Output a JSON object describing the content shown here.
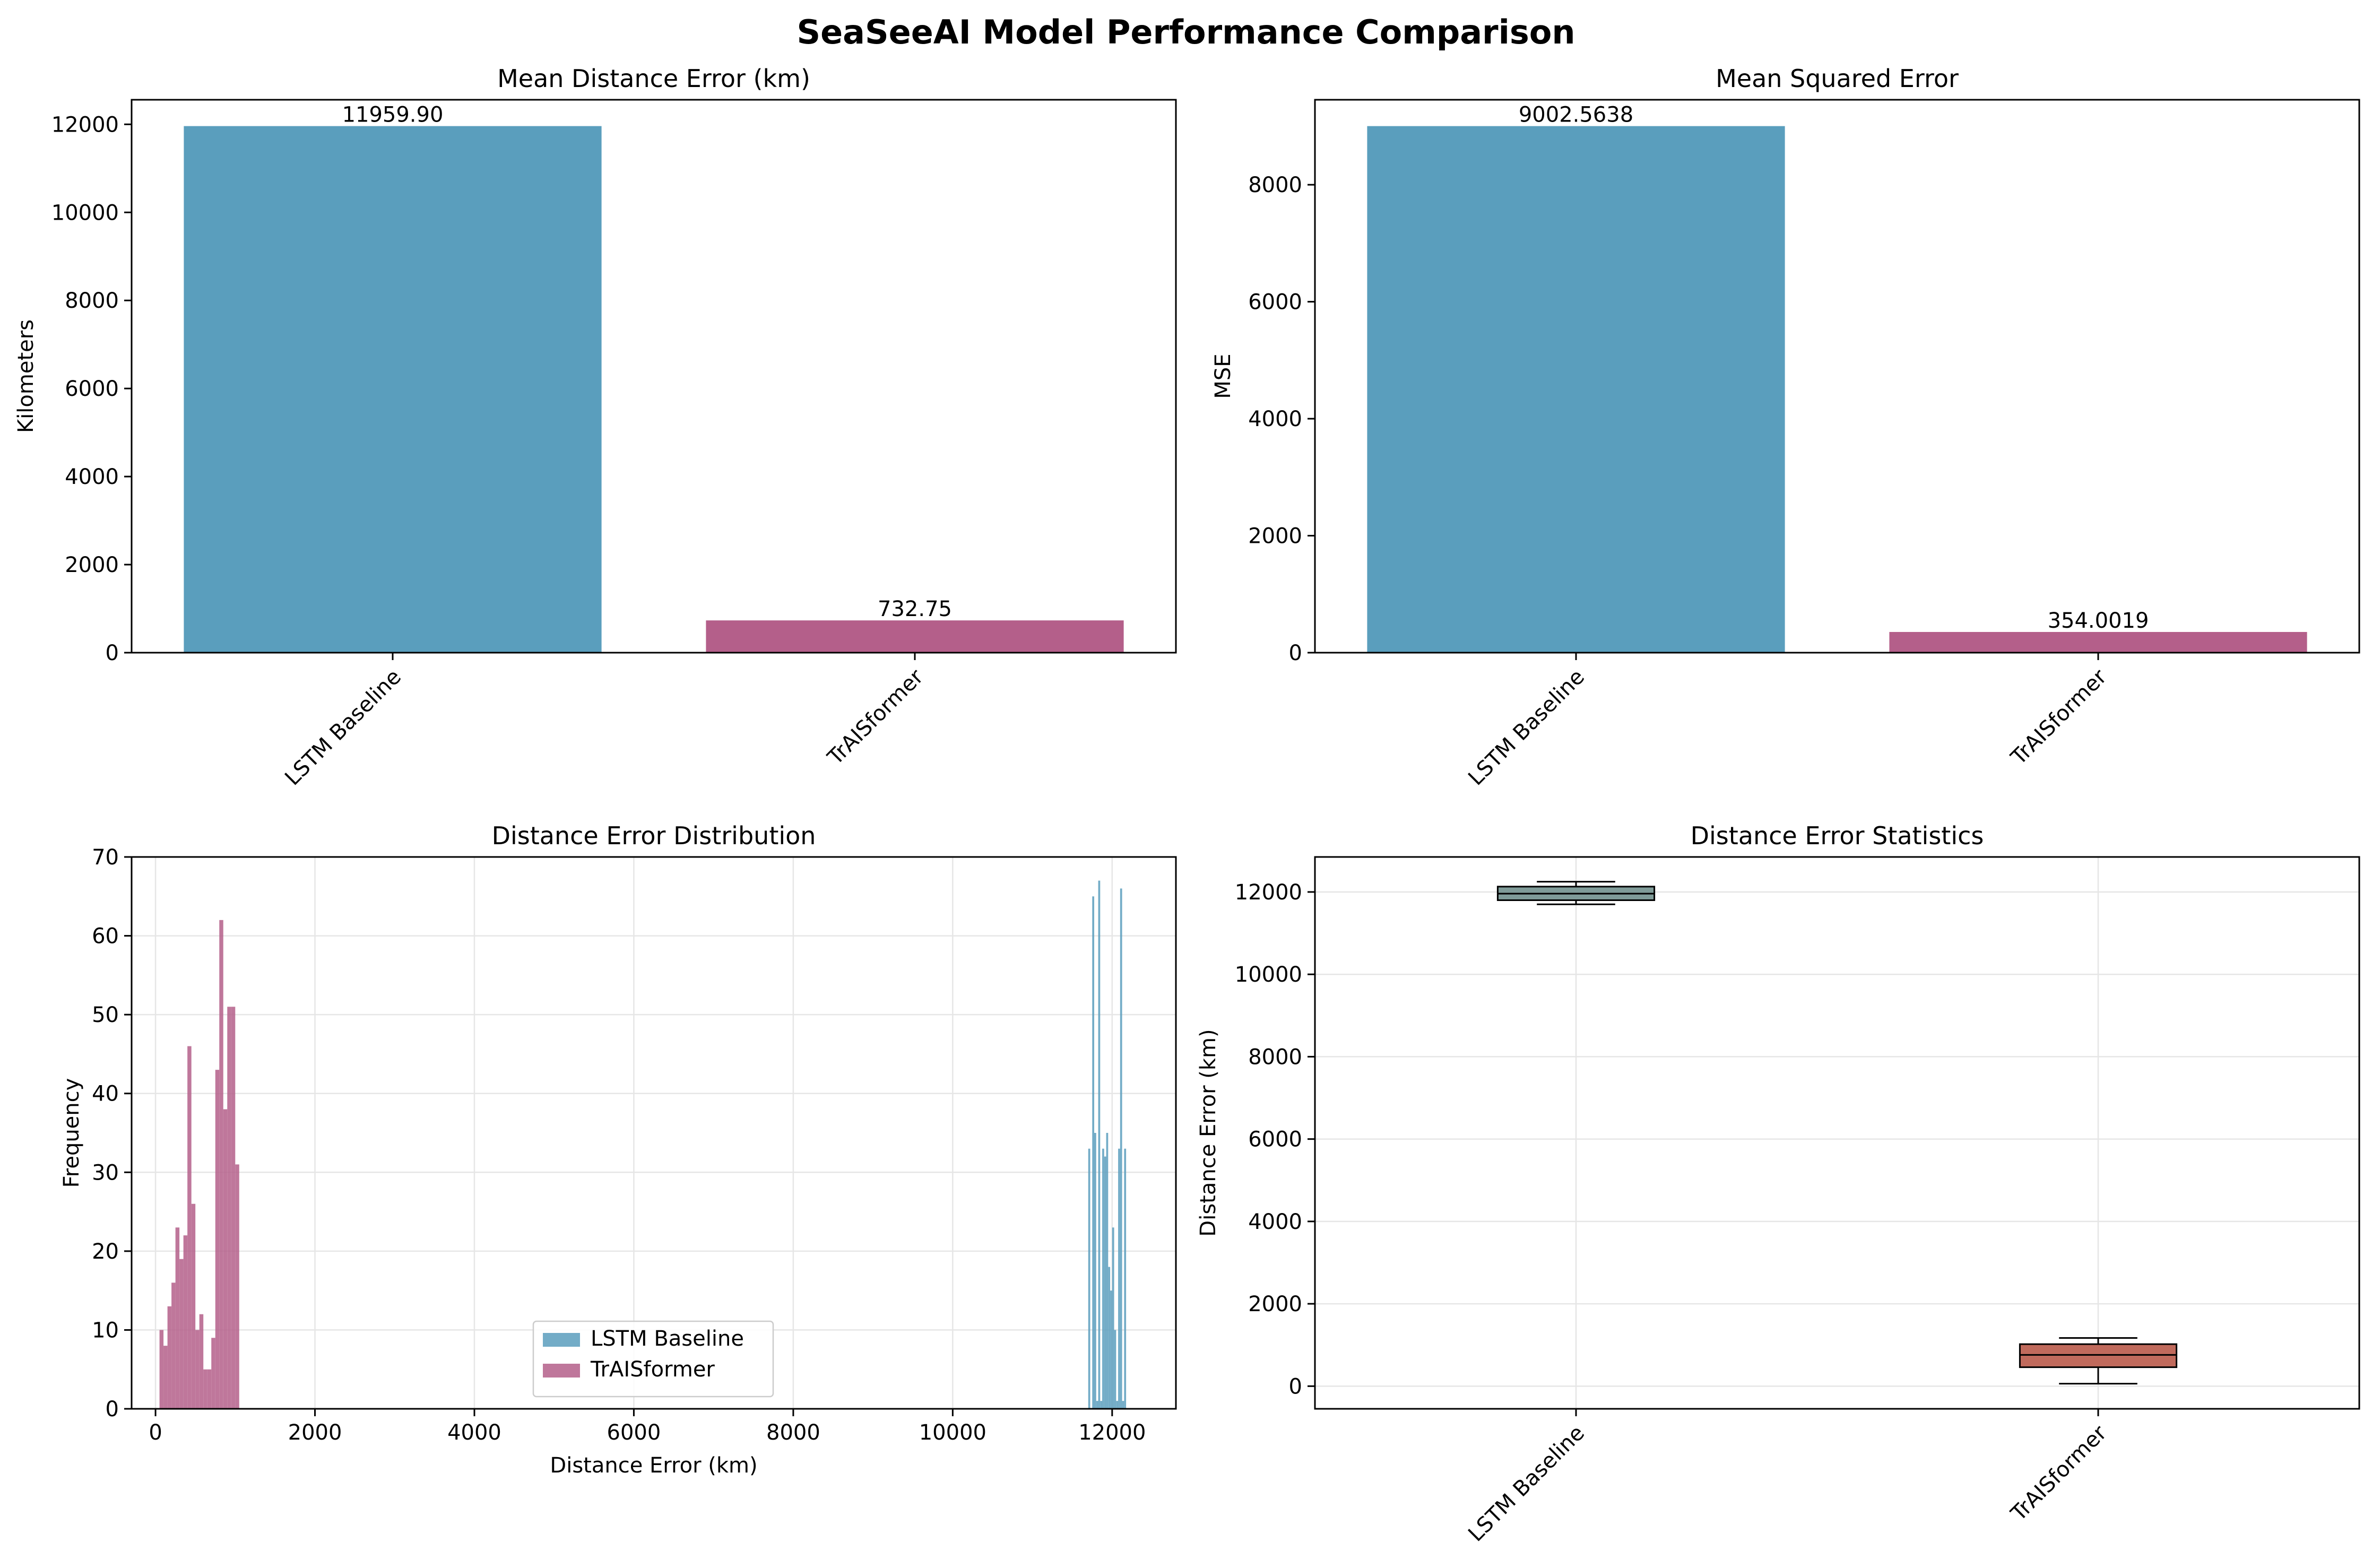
{
  "suptitle": "SeaSeeAI Model Performance Comparison",
  "colors": {
    "lstm": "#5a9ebd",
    "traisformer": "#b45f8a",
    "lstm_box": "#7f9b98",
    "trais_box": "#c06a5c",
    "grid": "#e6e6e6"
  },
  "chart_data": [
    {
      "type": "bar",
      "title": "Mean Distance Error (km)",
      "xlabel": "",
      "ylabel": "Kilometers",
      "categories": [
        "LSTM Baseline",
        "TrAISformer"
      ],
      "values": [
        11959.9,
        732.75
      ],
      "value_labels": [
        "11959.90",
        "732.75"
      ],
      "ylim": [
        0,
        12558
      ],
      "yticks": [
        0,
        2000,
        4000,
        6000,
        8000,
        10000,
        12000
      ],
      "grid": false
    },
    {
      "type": "bar",
      "title": "Mean Squared Error",
      "xlabel": "",
      "ylabel": "MSE",
      "categories": [
        "LSTM Baseline",
        "TrAISformer"
      ],
      "values": [
        9002.5638,
        354.0019
      ],
      "value_labels": [
        "9002.5638",
        "354.0019"
      ],
      "ylim": [
        0,
        9453
      ],
      "yticks": [
        0,
        2000,
        4000,
        6000,
        8000
      ],
      "grid": false
    },
    {
      "type": "histogram",
      "title": "Distance Error Distribution",
      "xlabel": "Distance Error (km)",
      "ylabel": "Frequency",
      "xlim": [
        -300,
        12800
      ],
      "ylim": [
        0,
        70
      ],
      "xticks": [
        0,
        2000,
        4000,
        6000,
        8000,
        10000,
        12000
      ],
      "yticks": [
        0,
        10,
        20,
        30,
        40,
        50,
        60,
        70
      ],
      "grid": true,
      "legend_position": "lower center",
      "series": [
        {
          "name": "LSTM Baseline",
          "bins": [
            11700,
            11725,
            11750,
            11775,
            11800,
            11825,
            11850,
            11875,
            11900,
            11925,
            11950,
            11975,
            12000,
            12025,
            12050,
            12075,
            12100,
            12125,
            12150,
            12175,
            12200,
            12225,
            12250
          ],
          "counts": [
            33,
            0,
            65,
            35,
            1,
            67,
            1,
            33,
            32,
            35,
            18,
            15,
            23,
            10,
            1,
            33,
            66,
            1,
            33,
            0,
            0,
            0
          ]
        },
        {
          "name": "TrAISformer",
          "bins": [
            50,
            100,
            150,
            200,
            250,
            300,
            350,
            400,
            450,
            500,
            550,
            600,
            650,
            700,
            750,
            800,
            850,
            900,
            950,
            1000,
            1050,
            1100,
            1150
          ],
          "counts": [
            10,
            8,
            13,
            16,
            23,
            19,
            22,
            46,
            26,
            10,
            12,
            5,
            5,
            9,
            43,
            62,
            38,
            51,
            51,
            31,
            0,
            0
          ]
        }
      ]
    },
    {
      "type": "box",
      "title": "Distance Error Statistics",
      "xlabel": "",
      "ylabel": "Distance Error (km)",
      "categories": [
        "LSTM Baseline",
        "TrAISformer"
      ],
      "ylim": [
        -550,
        12850
      ],
      "yticks": [
        0,
        2000,
        4000,
        6000,
        8000,
        10000,
        12000
      ],
      "grid": true,
      "boxes": [
        {
          "name": "LSTM Baseline",
          "whisker_low": 11700,
          "q1": 11800,
          "median": 11960,
          "q3": 12130,
          "whisker_high": 12250
        },
        {
          "name": "TrAISformer",
          "whisker_low": 60,
          "q1": 460,
          "median": 760,
          "q3": 1020,
          "whisker_high": 1170
        }
      ]
    }
  ]
}
